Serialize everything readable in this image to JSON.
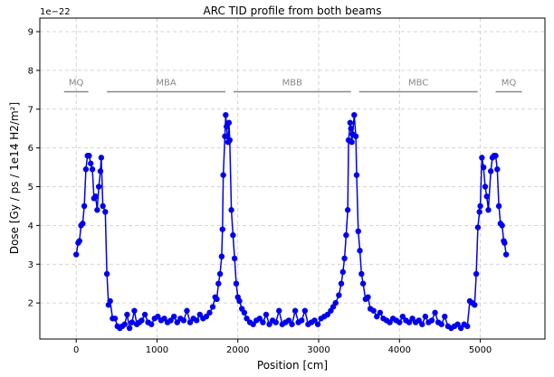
{
  "chart_data": {
    "type": "line",
    "title": "ARC TID profile from both beams",
    "x_label": "Position [cm]",
    "y_label": "Dose [Gy / ps / 1e14 H2/m²]",
    "y_offset_text": "1e−22",
    "x": [
      0,
      25,
      40,
      60,
      80,
      100,
      120,
      140,
      160,
      180,
      200,
      220,
      240,
      260,
      280,
      300,
      310,
      330,
      360,
      380,
      400,
      420,
      450,
      480,
      510,
      540,
      570,
      600,
      630,
      660,
      690,
      720,
      750,
      780,
      810,
      850,
      890,
      930,
      970,
      1010,
      1050,
      1090,
      1130,
      1170,
      1210,
      1250,
      1290,
      1330,
      1370,
      1410,
      1450,
      1490,
      1530,
      1570,
      1610,
      1650,
      1690,
      1720,
      1740,
      1760,
      1780,
      1800,
      1810,
      1820,
      1840,
      1850,
      1860,
      1870,
      1880,
      1890,
      1900,
      1920,
      1940,
      1960,
      1980,
      2000,
      2020,
      2050,
      2080,
      2110,
      2150,
      2190,
      2230,
      2270,
      2310,
      2350,
      2390,
      2430,
      2470,
      2510,
      2550,
      2590,
      2630,
      2670,
      2710,
      2750,
      2790,
      2830,
      2870,
      2910,
      2950,
      2990,
      3030,
      3070,
      3110,
      3150,
      3180,
      3210,
      3250,
      3280,
      3300,
      3320,
      3340,
      3360,
      3370,
      3390,
      3400,
      3410,
      3420,
      3440,
      3460,
      3470,
      3490,
      3510,
      3530,
      3550,
      3580,
      3610,
      3640,
      3680,
      3720,
      3760,
      3800,
      3840,
      3880,
      3920,
      3960,
      4000,
      4040,
      4080,
      4120,
      4160,
      4200,
      4240,
      4280,
      4320,
      4360,
      4400,
      4440,
      4480,
      4520,
      4560,
      4600,
      4640,
      4680,
      4720,
      4760,
      4800,
      4840,
      4870,
      4900,
      4930,
      4950,
      4970,
      4990,
      5000,
      5020,
      5040,
      5060,
      5080,
      5100,
      5130,
      5150,
      5170,
      5190,
      5210,
      5230,
      5250,
      5270,
      5290,
      5300,
      5320
    ],
    "series": [
      {
        "color": "#0000ee",
        "values": [
          3.25,
          3.55,
          3.6,
          4.0,
          4.05,
          4.5,
          5.45,
          5.8,
          5.8,
          5.6,
          5.45,
          4.7,
          4.75,
          4.4,
          5.0,
          5.4,
          5.75,
          4.5,
          4.35,
          2.75,
          1.95,
          2.05,
          1.6,
          1.6,
          1.4,
          1.35,
          1.4,
          1.45,
          1.7,
          1.35,
          1.5,
          1.8,
          1.45,
          1.5,
          1.55,
          1.7,
          1.5,
          1.45,
          1.6,
          1.65,
          1.55,
          1.6,
          1.5,
          1.55,
          1.65,
          1.5,
          1.6,
          1.55,
          1.8,
          1.5,
          1.6,
          1.55,
          1.7,
          1.6,
          1.65,
          1.75,
          1.9,
          2.15,
          2.1,
          2.5,
          2.75,
          3.2,
          3.9,
          5.3,
          6.3,
          6.85,
          6.55,
          6.3,
          6.15,
          6.65,
          6.2,
          4.4,
          3.75,
          3.15,
          2.5,
          2.15,
          2.05,
          1.85,
          1.75,
          1.6,
          1.5,
          1.45,
          1.55,
          1.6,
          1.5,
          1.7,
          1.45,
          1.55,
          1.5,
          1.8,
          1.45,
          1.5,
          1.55,
          1.45,
          1.8,
          1.5,
          1.55,
          1.8,
          1.45,
          1.5,
          1.55,
          1.45,
          1.6,
          1.65,
          1.7,
          1.8,
          1.9,
          2.0,
          2.2,
          2.5,
          2.8,
          3.15,
          3.75,
          4.4,
          6.2,
          6.65,
          6.5,
          6.15,
          6.35,
          6.85,
          6.3,
          5.3,
          3.85,
          3.35,
          2.75,
          2.5,
          2.1,
          2.15,
          1.85,
          1.8,
          1.65,
          1.75,
          1.6,
          1.55,
          1.5,
          1.6,
          1.55,
          1.5,
          1.65,
          1.55,
          1.5,
          1.6,
          1.5,
          1.55,
          1.45,
          1.65,
          1.5,
          1.55,
          1.75,
          1.5,
          1.45,
          1.65,
          1.4,
          1.35,
          1.4,
          1.45,
          1.35,
          1.45,
          1.4,
          2.05,
          2.0,
          1.95,
          2.75,
          3.95,
          4.35,
          4.5,
          5.75,
          5.5,
          5.0,
          4.75,
          4.4,
          5.4,
          5.75,
          5.8,
          5.8,
          5.45,
          4.5,
          4.05,
          4.0,
          3.6,
          3.55,
          3.25
        ]
      }
    ],
    "annotations": [
      {
        "text": "MQ",
        "x0": -150,
        "x1": 150,
        "y": 7.45
      },
      {
        "text": "MBA",
        "x0": 380,
        "x1": 1846,
        "y": 7.45
      },
      {
        "text": "MBB",
        "x0": 1946,
        "x1": 3400,
        "y": 7.45
      },
      {
        "text": "MBC",
        "x0": 3501,
        "x1": 4966,
        "y": 7.45
      },
      {
        "text": "MQ",
        "x0": 5190,
        "x1": 5515,
        "y": 7.45
      }
    ],
    "annotation_color": "#888888",
    "xlim": [
      -450,
      5800
    ],
    "ylim": [
      1.07,
      9.35
    ],
    "xticks": [
      0,
      1000,
      2000,
      3000,
      4000,
      5000
    ],
    "yticks": [
      2,
      3,
      4,
      5,
      6,
      7,
      8,
      9
    ],
    "grid": true
  }
}
